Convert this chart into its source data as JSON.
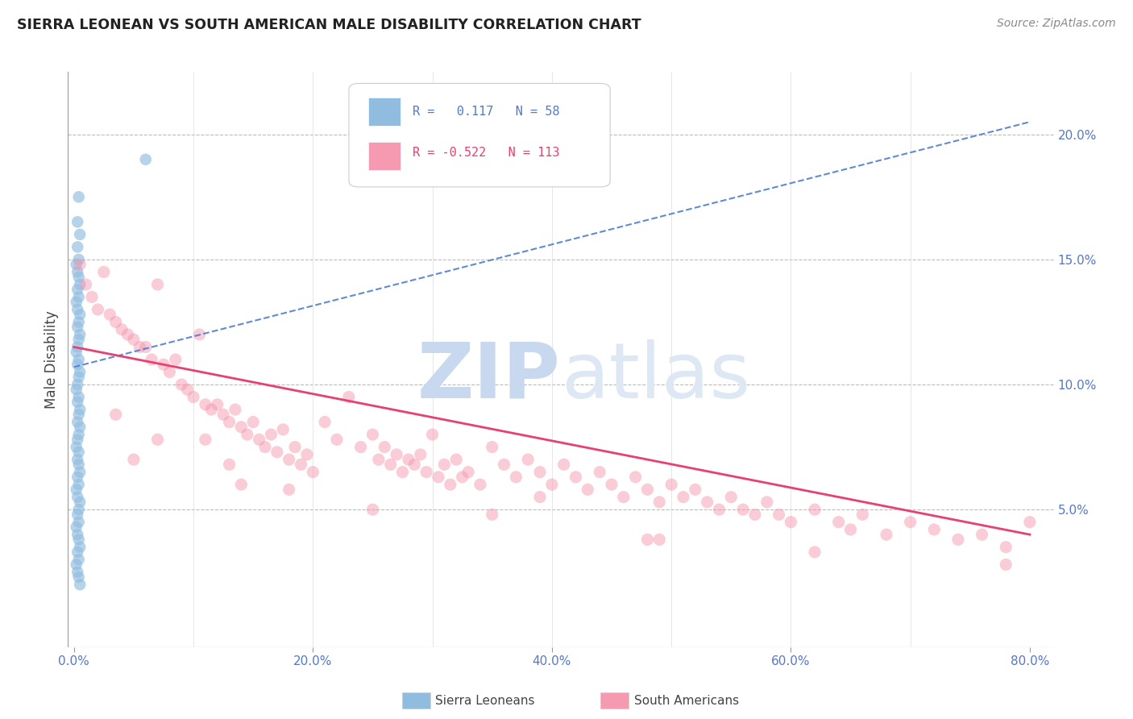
{
  "title": "SIERRA LEONEAN VS SOUTH AMERICAN MALE DISABILITY CORRELATION CHART",
  "source": "Source: ZipAtlas.com",
  "ylabel_left": "Male Disability",
  "y_ticks_right": [
    0.05,
    0.1,
    0.15,
    0.2
  ],
  "y_tick_labels_right": [
    "5.0%",
    "10.0%",
    "15.0%",
    "20.0%"
  ],
  "xlim": [
    -0.005,
    0.82
  ],
  "ylim": [
    -0.005,
    0.225
  ],
  "watermark": "ZIPatlas",
  "watermark_color": "#ccd9ee",
  "blue_color": "#90bce0",
  "pink_color": "#f59ab0",
  "blue_line_color": "#4477cc",
  "pink_line_color": "#e84070",
  "axis_color": "#5577cc",
  "background_color": "#ffffff",
  "sierra_x": [
    0.004,
    0.003,
    0.005,
    0.003,
    0.004,
    0.002,
    0.003,
    0.004,
    0.005,
    0.003,
    0.004,
    0.002,
    0.003,
    0.005,
    0.004,
    0.003,
    0.005,
    0.004,
    0.003,
    0.002,
    0.004,
    0.003,
    0.005,
    0.004,
    0.003,
    0.002,
    0.004,
    0.003,
    0.005,
    0.004,
    0.003,
    0.005,
    0.004,
    0.003,
    0.002,
    0.004,
    0.003,
    0.004,
    0.005,
    0.003,
    0.004,
    0.002,
    0.003,
    0.005,
    0.004,
    0.003,
    0.004,
    0.002,
    0.003,
    0.004,
    0.005,
    0.003,
    0.004,
    0.002,
    0.003,
    0.004,
    0.005,
    0.06
  ],
  "sierra_y": [
    0.175,
    0.165,
    0.16,
    0.155,
    0.15,
    0.148,
    0.145,
    0.143,
    0.14,
    0.138,
    0.135,
    0.133,
    0.13,
    0.128,
    0.125,
    0.123,
    0.12,
    0.118,
    0.115,
    0.113,
    0.11,
    0.108,
    0.105,
    0.103,
    0.1,
    0.098,
    0.095,
    0.093,
    0.09,
    0.088,
    0.085,
    0.083,
    0.08,
    0.078,
    0.075,
    0.073,
    0.07,
    0.068,
    0.065,
    0.063,
    0.06,
    0.058,
    0.055,
    0.053,
    0.05,
    0.048,
    0.045,
    0.043,
    0.04,
    0.038,
    0.035,
    0.033,
    0.03,
    0.028,
    0.025,
    0.023,
    0.02,
    0.19
  ],
  "south_x": [
    0.005,
    0.01,
    0.015,
    0.02,
    0.025,
    0.03,
    0.035,
    0.04,
    0.045,
    0.05,
    0.055,
    0.06,
    0.065,
    0.07,
    0.075,
    0.08,
    0.085,
    0.09,
    0.095,
    0.1,
    0.105,
    0.11,
    0.115,
    0.12,
    0.125,
    0.13,
    0.135,
    0.14,
    0.145,
    0.15,
    0.155,
    0.16,
    0.165,
    0.17,
    0.175,
    0.18,
    0.185,
    0.19,
    0.195,
    0.2,
    0.21,
    0.22,
    0.23,
    0.24,
    0.25,
    0.255,
    0.26,
    0.265,
    0.27,
    0.275,
    0.28,
    0.285,
    0.29,
    0.295,
    0.3,
    0.305,
    0.31,
    0.315,
    0.32,
    0.325,
    0.33,
    0.34,
    0.35,
    0.36,
    0.37,
    0.38,
    0.39,
    0.4,
    0.41,
    0.42,
    0.43,
    0.44,
    0.45,
    0.46,
    0.47,
    0.48,
    0.49,
    0.5,
    0.51,
    0.52,
    0.53,
    0.54,
    0.55,
    0.56,
    0.57,
    0.58,
    0.59,
    0.6,
    0.62,
    0.64,
    0.65,
    0.66,
    0.68,
    0.7,
    0.72,
    0.74,
    0.76,
    0.78,
    0.8,
    0.035,
    0.07,
    0.13,
    0.18,
    0.35,
    0.49,
    0.62,
    0.78,
    0.05,
    0.14,
    0.25,
    0.39,
    0.48,
    0.11
  ],
  "south_y": [
    0.148,
    0.14,
    0.135,
    0.13,
    0.145,
    0.128,
    0.125,
    0.122,
    0.12,
    0.118,
    0.115,
    0.115,
    0.11,
    0.14,
    0.108,
    0.105,
    0.11,
    0.1,
    0.098,
    0.095,
    0.12,
    0.092,
    0.09,
    0.092,
    0.088,
    0.085,
    0.09,
    0.083,
    0.08,
    0.085,
    0.078,
    0.075,
    0.08,
    0.073,
    0.082,
    0.07,
    0.075,
    0.068,
    0.072,
    0.065,
    0.085,
    0.078,
    0.095,
    0.075,
    0.08,
    0.07,
    0.075,
    0.068,
    0.072,
    0.065,
    0.07,
    0.068,
    0.072,
    0.065,
    0.08,
    0.063,
    0.068,
    0.06,
    0.07,
    0.063,
    0.065,
    0.06,
    0.075,
    0.068,
    0.063,
    0.07,
    0.065,
    0.06,
    0.068,
    0.063,
    0.058,
    0.065,
    0.06,
    0.055,
    0.063,
    0.058,
    0.053,
    0.06,
    0.055,
    0.058,
    0.053,
    0.05,
    0.055,
    0.05,
    0.048,
    0.053,
    0.048,
    0.045,
    0.05,
    0.045,
    0.042,
    0.048,
    0.04,
    0.045,
    0.042,
    0.038,
    0.04,
    0.035,
    0.045,
    0.088,
    0.078,
    0.068,
    0.058,
    0.048,
    0.038,
    0.033,
    0.028,
    0.07,
    0.06,
    0.05,
    0.055,
    0.038,
    0.078
  ]
}
